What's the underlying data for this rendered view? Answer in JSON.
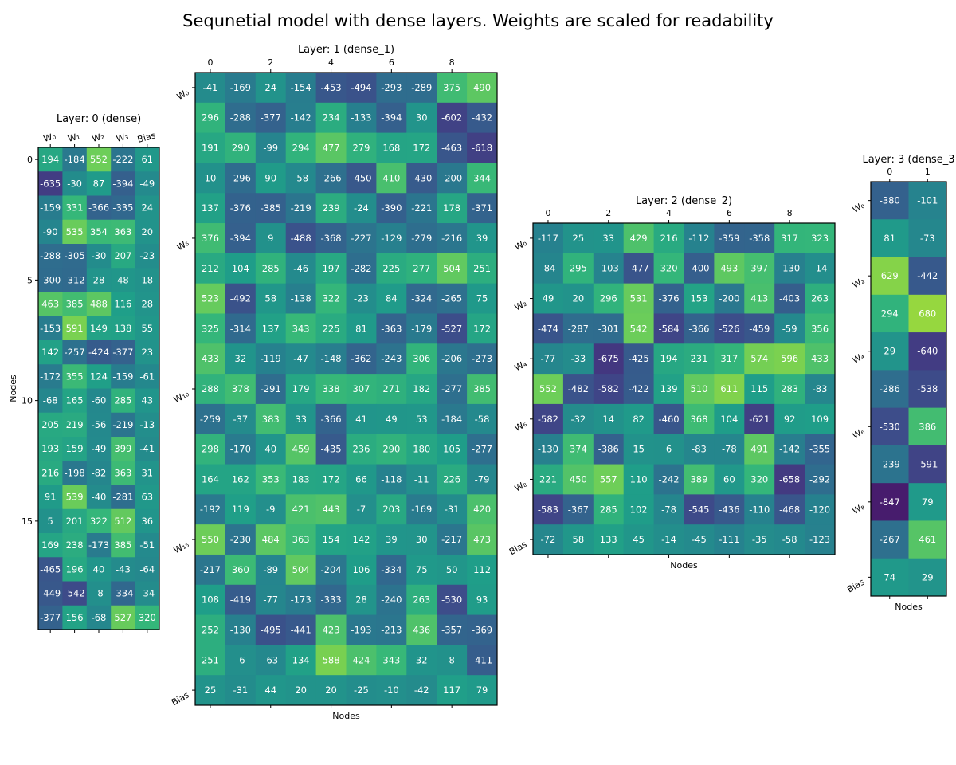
{
  "title": "Sequnetial model with dense layers. Weights are scaled for readability",
  "chart_data": [
    {
      "type": "heatmap",
      "title": "Layer: 0 (dense)",
      "ylabel": "Nodes",
      "xlabel": "",
      "colormap": "viridis",
      "color_range": [
        -1000,
        1000
      ],
      "x_ticks_top": [
        {
          "col": 0,
          "label": "W₀"
        },
        {
          "col": 1,
          "label": "W₁"
        },
        {
          "col": 2,
          "label": "W₂"
        },
        {
          "col": 3,
          "label": "W₃"
        },
        {
          "col": 4,
          "label": "Bias"
        }
      ],
      "y_ticks": [
        {
          "row": 0,
          "label": "0"
        },
        {
          "row": 5,
          "label": "5"
        },
        {
          "row": 10,
          "label": "10"
        },
        {
          "row": 15,
          "label": "15"
        }
      ],
      "values": [
        [
          194,
          -184,
          552,
          -222,
          61
        ],
        [
          -635,
          -30,
          87,
          -394,
          -49
        ],
        [
          -159,
          331,
          -366,
          -335,
          24
        ],
        [
          -90,
          535,
          354,
          363,
          20
        ],
        [
          -288,
          -305,
          -30,
          207,
          -23
        ],
        [
          -300,
          -312,
          28,
          48,
          18
        ],
        [
          463,
          385,
          488,
          116,
          28
        ],
        [
          -153,
          591,
          149,
          138,
          55
        ],
        [
          142,
          -257,
          -424,
          -377,
          23
        ],
        [
          -172,
          355,
          124,
          -159,
          -61
        ],
        [
          -68,
          165,
          -60,
          285,
          43
        ],
        [
          205,
          219,
          -56,
          -219,
          -13
        ],
        [
          193,
          159,
          -49,
          399,
          -41
        ],
        [
          216,
          -198,
          -82,
          363,
          31
        ],
        [
          91,
          539,
          -40,
          -281,
          63
        ],
        [
          5,
          201,
          322,
          512,
          36
        ],
        [
          169,
          238,
          -173,
          385,
          -51
        ],
        [
          -465,
          196,
          40,
          -43,
          -64
        ],
        [
          -449,
          -542,
          -8,
          -334,
          -34
        ],
        [
          -377,
          156,
          -68,
          527,
          320
        ]
      ]
    },
    {
      "type": "heatmap",
      "title": "Layer: 1 (dense_1)",
      "xlabel": "Nodes",
      "ylabel": "",
      "colormap": "viridis",
      "color_range": [
        -1000,
        1000
      ],
      "x_ticks_top": [
        {
          "col": 0,
          "label": "0"
        },
        {
          "col": 2,
          "label": "2"
        },
        {
          "col": 4,
          "label": "4"
        },
        {
          "col": 6,
          "label": "6"
        },
        {
          "col": 8,
          "label": "8"
        }
      ],
      "y_ticks": [
        {
          "row": 0,
          "label": "W₀"
        },
        {
          "row": 5,
          "label": "W₅"
        },
        {
          "row": 10,
          "label": "W₁₀"
        },
        {
          "row": 15,
          "label": "W₁₅"
        },
        {
          "row": 20,
          "label": "Bias"
        }
      ],
      "values": [
        [
          -41,
          -169,
          24,
          -154,
          -453,
          -494,
          -293,
          -289,
          375,
          490
        ],
        [
          296,
          -288,
          -377,
          -142,
          234,
          -133,
          -394,
          30,
          -602,
          -432
        ],
        [
          191,
          290,
          -99,
          294,
          477,
          279,
          168,
          172,
          -463,
          -618
        ],
        [
          10,
          -296,
          90,
          -58,
          -266,
          -450,
          410,
          -430,
          -200,
          344
        ],
        [
          137,
          -376,
          -385,
          -219,
          239,
          -24,
          -390,
          -221,
          178,
          -371
        ],
        [
          376,
          -394,
          9,
          -488,
          -368,
          -227,
          -129,
          -279,
          -216,
          39
        ],
        [
          212,
          104,
          285,
          -46,
          197,
          -282,
          225,
          277,
          504,
          251
        ],
        [
          523,
          -492,
          58,
          -138,
          322,
          -23,
          84,
          -324,
          -265,
          75
        ],
        [
          325,
          -314,
          137,
          343,
          225,
          81,
          -363,
          -179,
          -527,
          172
        ],
        [
          433,
          32,
          -119,
          -47,
          -148,
          -362,
          -243,
          306,
          -206,
          -273
        ],
        [
          288,
          378,
          -291,
          179,
          338,
          307,
          271,
          182,
          -277,
          385
        ],
        [
          -259,
          -37,
          383,
          33,
          -366,
          41,
          49,
          53,
          -184,
          -58
        ],
        [
          298,
          -170,
          40,
          459,
          -435,
          236,
          290,
          180,
          105,
          -277
        ],
        [
          164,
          162,
          353,
          183,
          172,
          66,
          -118,
          -11,
          226,
          -79
        ],
        [
          -192,
          119,
          -9,
          421,
          443,
          -7,
          203,
          -169,
          -31,
          420
        ],
        [
          550,
          -230,
          484,
          363,
          154,
          142,
          39,
          30,
          -217,
          473
        ],
        [
          -217,
          360,
          -89,
          504,
          -204,
          106,
          -334,
          75,
          50,
          112
        ],
        [
          108,
          -419,
          -77,
          -173,
          -333,
          28,
          -240,
          263,
          -530,
          93
        ],
        [
          252,
          -130,
          -495,
          -441,
          423,
          -193,
          -213,
          436,
          -357,
          -369
        ],
        [
          251,
          -6,
          -63,
          134,
          588,
          424,
          343,
          32,
          8,
          -411
        ],
        [
          25,
          -31,
          44,
          20,
          20,
          -25,
          -10,
          -42,
          117,
          79
        ]
      ]
    },
    {
      "type": "heatmap",
      "title": "Layer: 2 (dense_2)",
      "xlabel": "Nodes",
      "ylabel": "",
      "colormap": "viridis",
      "color_range": [
        -1000,
        1000
      ],
      "x_ticks_top": [
        {
          "col": 0,
          "label": "0"
        },
        {
          "col": 2,
          "label": "2"
        },
        {
          "col": 4,
          "label": "4"
        },
        {
          "col": 6,
          "label": "6"
        },
        {
          "col": 8,
          "label": "8"
        }
      ],
      "y_ticks": [
        {
          "row": 0,
          "label": "W₀"
        },
        {
          "row": 2,
          "label": "W₂"
        },
        {
          "row": 4,
          "label": "W₄"
        },
        {
          "row": 6,
          "label": "W₆"
        },
        {
          "row": 8,
          "label": "W₈"
        },
        {
          "row": 10,
          "label": "Bias"
        }
      ],
      "values": [
        [
          -117,
          25,
          33,
          429,
          216,
          -112,
          -359,
          -358,
          317,
          323
        ],
        [
          -84,
          295,
          -103,
          -477,
          320,
          -400,
          493,
          397,
          -130,
          -14
        ],
        [
          49,
          20,
          296,
          531,
          -376,
          153,
          -200,
          413,
          -403,
          263
        ],
        [
          -474,
          -287,
          -301,
          542,
          -584,
          -366,
          -526,
          -459,
          -59,
          356
        ],
        [
          -77,
          -33,
          -675,
          -425,
          194,
          231,
          317,
          574,
          596,
          433
        ],
        [
          552,
          -482,
          -582,
          -422,
          139,
          510,
          611,
          115,
          283,
          -83
        ],
        [
          -582,
          -32,
          14,
          82,
          -460,
          368,
          104,
          -621,
          92,
          109
        ],
        [
          -130,
          374,
          -386,
          15,
          6,
          -83,
          -78,
          491,
          -142,
          -355
        ],
        [
          221,
          450,
          557,
          110,
          -242,
          389,
          60,
          320,
          -658,
          -292
        ],
        [
          -583,
          -367,
          285,
          102,
          -78,
          -545,
          -436,
          -110,
          -468,
          -120
        ],
        [
          -72,
          58,
          133,
          45,
          -14,
          -45,
          -111,
          -35,
          -58,
          -123
        ]
      ]
    },
    {
      "type": "heatmap",
      "title": "Layer: 3 (dense_3",
      "xlabel": "Nodes",
      "ylabel": "",
      "colormap": "viridis",
      "color_range": [
        -1000,
        1000
      ],
      "x_ticks_top": [
        {
          "col": 0,
          "label": "0"
        },
        {
          "col": 1,
          "label": "1"
        }
      ],
      "y_ticks": [
        {
          "row": 0,
          "label": "W₀"
        },
        {
          "row": 2,
          "label": "W₂"
        },
        {
          "row": 4,
          "label": "W₄"
        },
        {
          "row": 6,
          "label": "W₆"
        },
        {
          "row": 8,
          "label": "W₈"
        },
        {
          "row": 10,
          "label": "Bias"
        }
      ],
      "values": [
        [
          -380,
          -101
        ],
        [
          81,
          -73
        ],
        [
          629,
          -442
        ],
        [
          294,
          680
        ],
        [
          29,
          -640
        ],
        [
          -286,
          -538
        ],
        [
          -530,
          386
        ],
        [
          -239,
          -591
        ],
        [
          -847,
          79
        ],
        [
          -267,
          461
        ],
        [
          74,
          29
        ]
      ]
    }
  ]
}
